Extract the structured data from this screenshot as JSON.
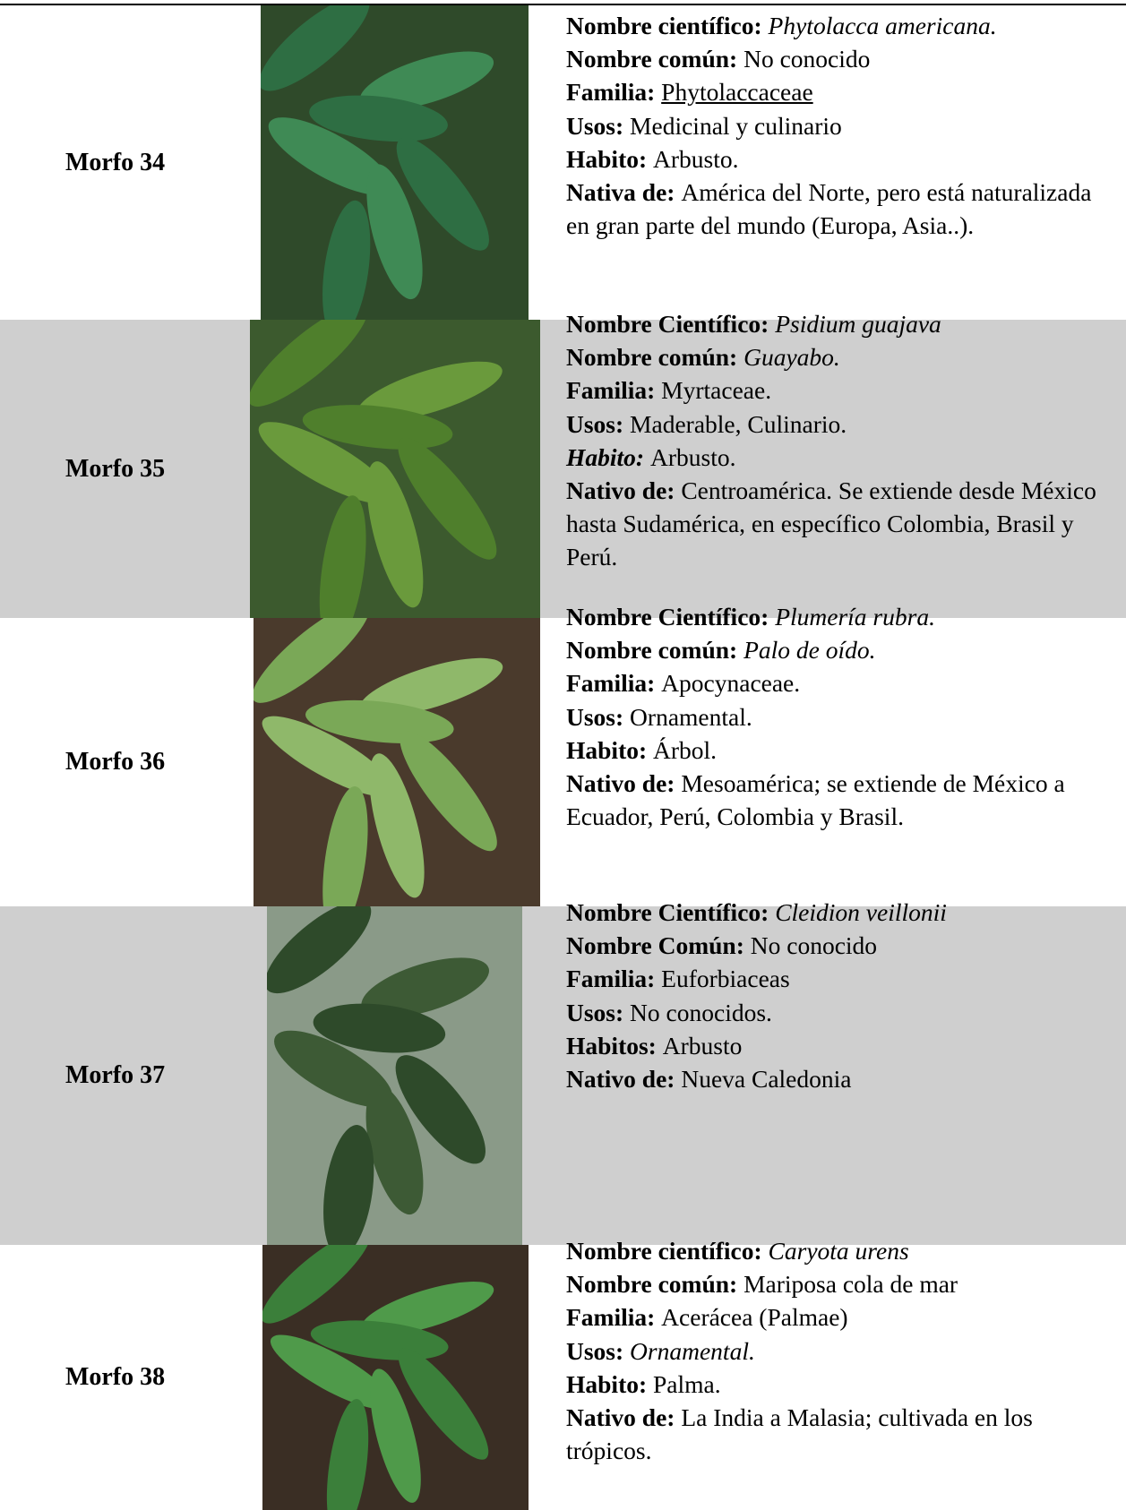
{
  "rows": [
    {
      "label": "Morfo 34",
      "fields": [
        {
          "label": "Nombre científico:",
          "value": "Phytolacca americana."
        },
        {
          "label": "Nombre común:",
          "value": "No conocido"
        },
        {
          "label": "Familia:",
          "value": "Phytolaccaceae"
        },
        {
          "label": "Usos:",
          "value": "Medicinal y culinario"
        },
        {
          "label": "Habito:",
          "value": "Arbusto."
        },
        {
          "label": "Nativa de:",
          "value": "América del Norte, pero está naturalizada en gran parte del mundo (Europa, Asia..)."
        }
      ]
    },
    {
      "label": "Morfo 35",
      "fields": [
        {
          "label": "Nombre Científico:",
          "value": "Psidium guajava"
        },
        {
          "label": "Nombre común:",
          "value": "Guayabo."
        },
        {
          "label": "Familia:",
          "value": "Myrtaceae."
        },
        {
          "label": "Usos:",
          "value": "Maderable, Culinario."
        },
        {
          "label": "Habito:",
          "value": "Arbusto."
        },
        {
          "label": "Nativo de:",
          "value": "Centroamérica. Se extiende desde México hasta Sudamérica, en específico Colombia, Brasil y Perú."
        }
      ]
    },
    {
      "label": "Morfo 36",
      "fields": [
        {
          "label": "Nombre Científico:",
          "value": "Plumería rubra."
        },
        {
          "label": "Nombre común:",
          "value": "Palo de oído."
        },
        {
          "label": "Familia:",
          "value": "Apocynaceae."
        },
        {
          "label": "Usos:",
          "value": "Ornamental."
        },
        {
          "label": "Habito:",
          "value": "Árbol."
        },
        {
          "label": "Nativo de:",
          "value": "Mesoamérica; se extiende de México a Ecuador, Perú, Colombia y Brasil."
        }
      ]
    },
    {
      "label": "Morfo 37",
      "fields": [
        {
          "label": "Nombre Científico:",
          "value": "Cleidion veillonii"
        },
        {
          "label": "Nombre Común:",
          "value": "No conocido"
        },
        {
          "label": "Familia:",
          "value": "Euforbiaceas"
        },
        {
          "label": "Usos:",
          "value": "No conocidos."
        },
        {
          "label": "Habitos:",
          "value": "Arbusto"
        },
        {
          "label": "Nativo de:",
          "value": "Nueva Caledonia"
        }
      ]
    },
    {
      "label": "Morfo 38",
      "fields": [
        {
          "label": "Nombre científico:",
          "value": "Caryota urens"
        },
        {
          "label": "Nombre común:",
          "value": "Mariposa cola de mar"
        },
        {
          "label": "Familia:",
          "value": "Acerácea (Palmae)"
        },
        {
          "label": "Usos:",
          "value": "Ornamental."
        },
        {
          "label": "Habito:",
          "value": "Palma."
        },
        {
          "label": "Nativo de:",
          "value": "La India a Malasia; cultivada en los trópicos."
        }
      ]
    }
  ]
}
